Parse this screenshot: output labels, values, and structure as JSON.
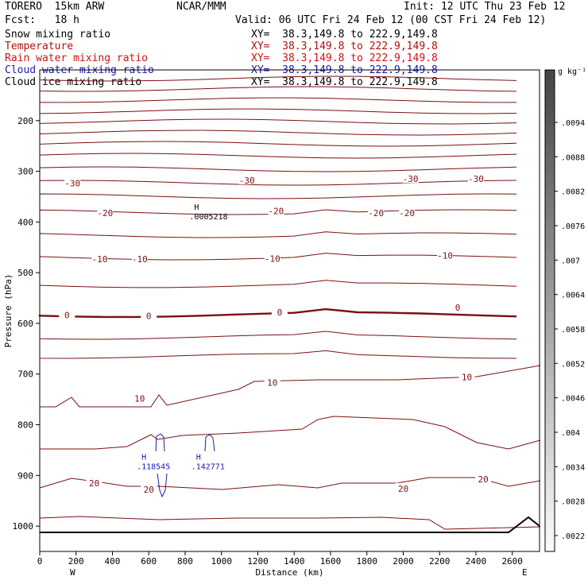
{
  "header": {
    "model": "TORERO  15km ARW",
    "source": "NCAR/MMM",
    "init": "Init: 12 UTC Thu 23 Feb 12",
    "fcst": "Fcst:   18 h",
    "valid": "Valid: 06 UTC Fri 24 Feb 12 (00 CST Fri 24 Feb 12)",
    "fields": [
      {
        "name": "Snow mixing ratio",
        "xy": "XY=  38.3,149.8 to 222.9,149.8",
        "color": "#000000"
      },
      {
        "name": "Temperature",
        "xy": "XY=  38.3,149.8 to 222.9,149.8",
        "color": "#b01010"
      },
      {
        "name": "Rain water mixing ratio",
        "xy": "XY=  38.3,149.8 to 222.9,149.8",
        "color": "#d01010"
      },
      {
        "name": "Cloud water mixing ratio",
        "xy": "XY=  38.3,149.8 to 222.9,149.8",
        "color": "#1a1aaa"
      },
      {
        "name": "Cloud ice mixing ratio",
        "xy": "XY=  38.3,149.8 to 222.9,149.8",
        "color": "#000000"
      }
    ]
  },
  "chart_data": {
    "type": "line",
    "title": "",
    "xlabel": "Distance (km)",
    "ylabel": "Pressure (hPa)",
    "xlim": [
      0,
      2750
    ],
    "ylim": [
      1050,
      100
    ],
    "x_ticks": [
      0,
      200,
      400,
      600,
      800,
      1000,
      1200,
      1400,
      1600,
      1800,
      2000,
      2200,
      2400,
      2600
    ],
    "y_ticks": [
      200,
      300,
      400,
      500,
      600,
      700,
      800,
      900,
      1000
    ],
    "x_end_labels": {
      "left": "W",
      "right": "E"
    },
    "colorbar": {
      "unit": "g kg⁻¹",
      "labels": [
        ".0094",
        ".0088",
        ".0082",
        ".0076",
        ".007",
        ".0064",
        ".0058",
        ".0052",
        ".0046",
        ".004",
        ".0034",
        ".0028",
        ".0022"
      ]
    },
    "temperature_labels": [
      {
        "text": "-30",
        "x": 180,
        "p": 323
      },
      {
        "text": "-30",
        "x": 1140,
        "p": 318
      },
      {
        "text": "-30",
        "x": 2040,
        "p": 315
      },
      {
        "text": "-30",
        "x": 2400,
        "p": 315
      },
      {
        "text": "-20",
        "x": 360,
        "p": 382
      },
      {
        "text": "-20",
        "x": 1300,
        "p": 378
      },
      {
        "text": "-20",
        "x": 1850,
        "p": 382
      },
      {
        "text": "-20",
        "x": 2020,
        "p": 382
      },
      {
        "text": "-10",
        "x": 330,
        "p": 473
      },
      {
        "text": "-10",
        "x": 550,
        "p": 473
      },
      {
        "text": "-10",
        "x": 1280,
        "p": 472
      },
      {
        "text": "-10",
        "x": 2230,
        "p": 466
      },
      {
        "text": "0",
        "x": 150,
        "p": 584
      },
      {
        "text": "0",
        "x": 600,
        "p": 585
      },
      {
        "text": "0",
        "x": 1320,
        "p": 578
      },
      {
        "text": "0",
        "x": 2300,
        "p": 569
      },
      {
        "text": "10",
        "x": 550,
        "p": 748
      },
      {
        "text": "10",
        "x": 1280,
        "p": 717
      },
      {
        "text": "10",
        "x": 2350,
        "p": 706
      },
      {
        "text": "20",
        "x": 300,
        "p": 915
      },
      {
        "text": "20",
        "x": 600,
        "p": 928
      },
      {
        "text": "20",
        "x": 2000,
        "p": 926
      },
      {
        "text": "20",
        "x": 2440,
        "p": 907
      }
    ],
    "maxima": [
      {
        "label": "H",
        "value": ".0005218",
        "x": 850,
        "p": 385,
        "field": "Cloud ice mixing ratio"
      },
      {
        "label": "H",
        "value": ".118545",
        "x": 560,
        "p": 878,
        "field": "Cloud water mixing ratio"
      },
      {
        "label": "H",
        "value": ".142771",
        "x": 860,
        "p": 878,
        "field": "Cloud water mixing ratio"
      }
    ]
  }
}
